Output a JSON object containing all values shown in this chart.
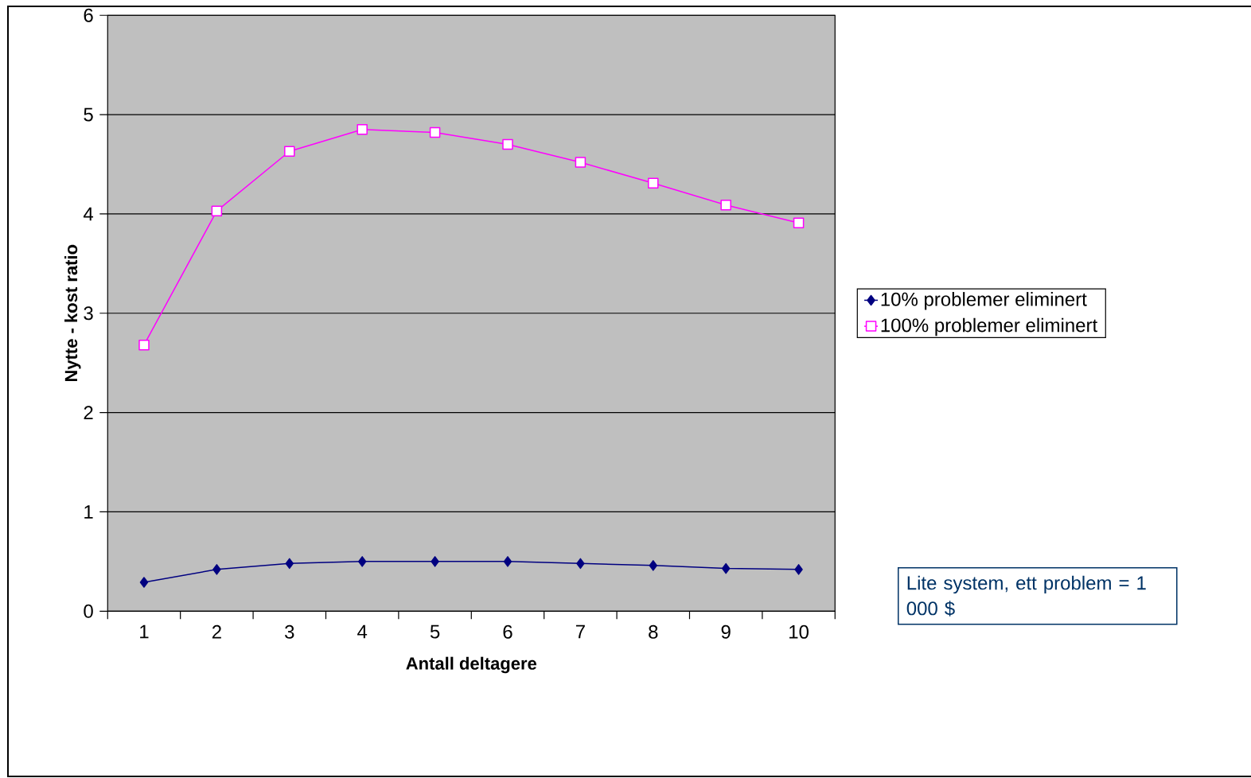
{
  "chart_data": {
    "type": "line",
    "xlabel": "Antall deltagere",
    "ylabel": "Nytte - kost ratio",
    "categories": [
      "1",
      "2",
      "3",
      "4",
      "5",
      "6",
      "7",
      "8",
      "9",
      "10"
    ],
    "series": [
      {
        "name": "10% problemer eliminert",
        "color": "#000080",
        "marker": "diamond",
        "values": [
          0.29,
          0.42,
          0.48,
          0.5,
          0.5,
          0.5,
          0.48,
          0.46,
          0.43,
          0.42
        ]
      },
      {
        "name": "100% problemer eliminert",
        "color": "#ff00ff",
        "marker": "square",
        "values": [
          2.68,
          4.03,
          4.63,
          4.85,
          4.82,
          4.7,
          4.52,
          4.31,
          4.09,
          3.91
        ]
      }
    ],
    "ylim": [
      0,
      6
    ],
    "yticks": [
      0,
      1,
      2,
      3,
      4,
      5,
      6
    ],
    "grid": "y",
    "legend": "right",
    "annotations": [
      "Lite system, ett problem = 1 000 $"
    ]
  }
}
